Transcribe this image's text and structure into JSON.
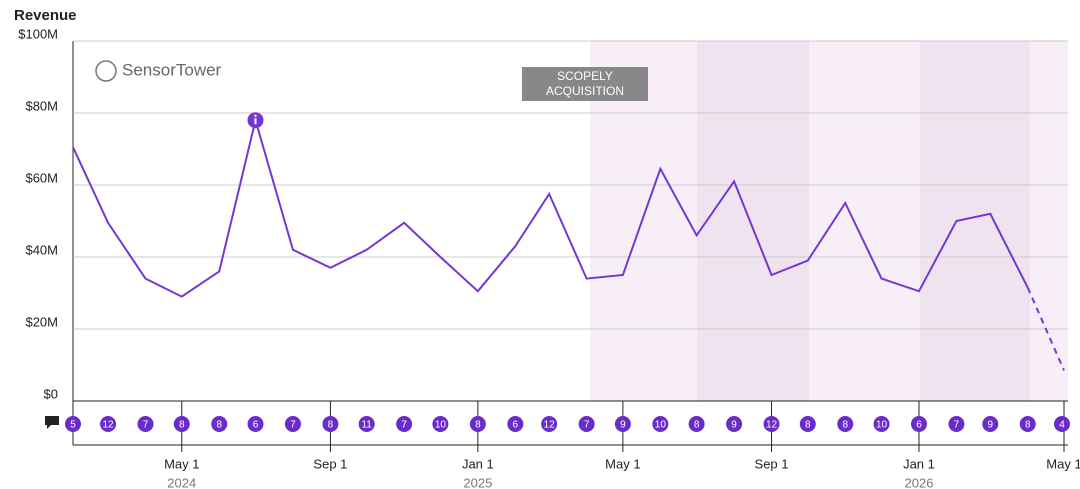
{
  "chart_data": {
    "type": "line",
    "title": "Revenue",
    "watermark": "SensorTower",
    "annotation": "SCOPELY ACQUISITION",
    "x": [
      "2024-02-01",
      "2024-03-01",
      "2024-04-01",
      "2024-05-01",
      "2024-06-01",
      "2024-07-01",
      "2024-08-01",
      "2024-09-01",
      "2024-10-01",
      "2024-11-01",
      "2024-12-01",
      "2025-01-01",
      "2025-02-01",
      "2025-03-01",
      "2025-04-01",
      "2025-05-01",
      "2025-06-01",
      "2025-07-01",
      "2025-08-01",
      "2025-09-01",
      "2025-10-01",
      "2025-11-01",
      "2025-12-01",
      "2026-01-01",
      "2026-02-01",
      "2026-03-01",
      "2026-04-01",
      "2026-05-01"
    ],
    "series": [
      {
        "color": "#7636d1",
        "values": [
          70500000,
          49500000,
          34000000,
          29000000,
          36000000,
          78000000,
          42000000,
          37000000,
          42000000,
          49500000,
          40000000,
          30500000,
          43000000,
          57500000,
          34000000,
          35000000,
          64500000,
          46000000,
          61000000,
          35000000,
          39000000,
          55000000,
          34000000,
          30500000,
          50000000,
          52000000,
          31500000,
          8500000
        ]
      }
    ],
    "dashed_last_segment": true,
    "event_counts": [
      5,
      12,
      7,
      8,
      8,
      6,
      7,
      8,
      11,
      7,
      10,
      8,
      6,
      12,
      7,
      9,
      10,
      8,
      9,
      12,
      8,
      8,
      10,
      6,
      7,
      9,
      8,
      4
    ],
    "xlim": [
      "2024-02-01",
      "2026-05-01"
    ],
    "xticks": [
      {
        "value": "2024-05-01",
        "label": "May 1"
      },
      {
        "value": "2024-09-01",
        "label": "Sep 1"
      },
      {
        "value": "2025-01-01",
        "label": "Jan 1"
      },
      {
        "value": "2025-05-01",
        "label": "May 1"
      },
      {
        "value": "2025-09-01",
        "label": "Sep 1"
      },
      {
        "value": "2026-01-01",
        "label": "Jan 1"
      },
      {
        "value": "2026-05-01",
        "label": "May 1"
      }
    ],
    "year_labels": [
      {
        "value": "2024-05-01",
        "label": "2024"
      },
      {
        "value": "2025-01-01",
        "label": "2025"
      },
      {
        "value": "2026-01-01",
        "label": "2026"
      }
    ],
    "ylim": [
      0,
      100000000
    ],
    "yticks": [
      {
        "value": 0,
        "label": "$0"
      },
      {
        "value": 20000000,
        "label": "$20M"
      },
      {
        "value": 40000000,
        "label": "$40M"
      },
      {
        "value": 60000000,
        "label": "$60M"
      },
      {
        "value": 80000000,
        "label": "$80M"
      },
      {
        "value": 100000000,
        "label": "$100M"
      }
    ],
    "grid": true
  }
}
